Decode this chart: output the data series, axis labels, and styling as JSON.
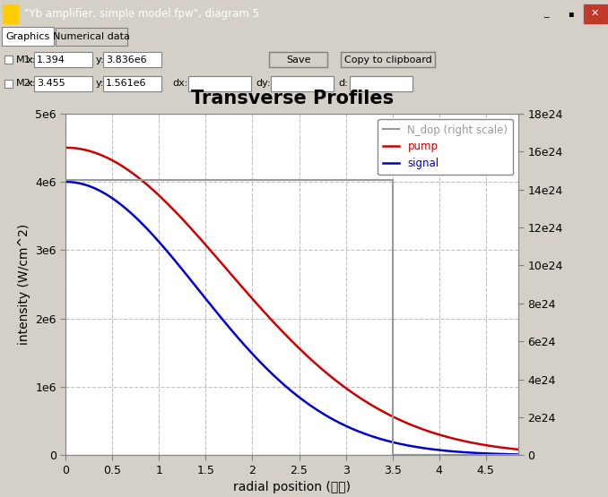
{
  "title": "Transverse Profiles",
  "xlabel": "radial position (殙殚)",
  "ylabel": "intensity (W/cm^2)",
  "ylabel_right": "N_dop (right scale)",
  "window_title": "\"Yb amplifier, simple model.fpw\", diagram 5",
  "xlim": [
    0,
    4.85
  ],
  "ylim_left": [
    0,
    5000000.0
  ],
  "ylim_right": [
    0,
    1.8e+25
  ],
  "pump_color": "#cc0000",
  "signal_color": "#0000cc",
  "ndop_color": "#999999",
  "grid_color": "#c0c0c0",
  "bg_color": "#d4d0c8",
  "plot_bg": "#ffffff",
  "pump_sigma": 1.72,
  "pump_peak": 4500000.0,
  "signal_sigma": 1.42,
  "signal_peak": 4000000.0,
  "ndop_level": 1.45e+25,
  "ndop_edge": 3.5,
  "legend_labels": [
    "N_dop (right scale)",
    "pump",
    "signal"
  ],
  "xticks": [
    0,
    0.5,
    1.0,
    1.5,
    2.0,
    2.5,
    3.0,
    3.5,
    4.0,
    4.5
  ],
  "yticks_left": [
    0,
    1000000.0,
    2000000.0,
    3000000.0,
    4000000.0,
    5000000.0
  ],
  "yticks_right": [
    0,
    2e+24,
    4e+24,
    6e+24,
    8e+24,
    1e+25,
    1.2e+25,
    1.4e+25,
    1.6e+25,
    1.8e+25
  ],
  "ytick_labels_left": [
    "0",
    "1e6",
    "2e6",
    "3e6",
    "4e6",
    "5e6"
  ],
  "ytick_labels_right": [
    "0",
    "2e24",
    "4e24",
    "6e24",
    "8e24",
    "10e24",
    "12e24",
    "14e24",
    "16e24",
    "18e24"
  ]
}
